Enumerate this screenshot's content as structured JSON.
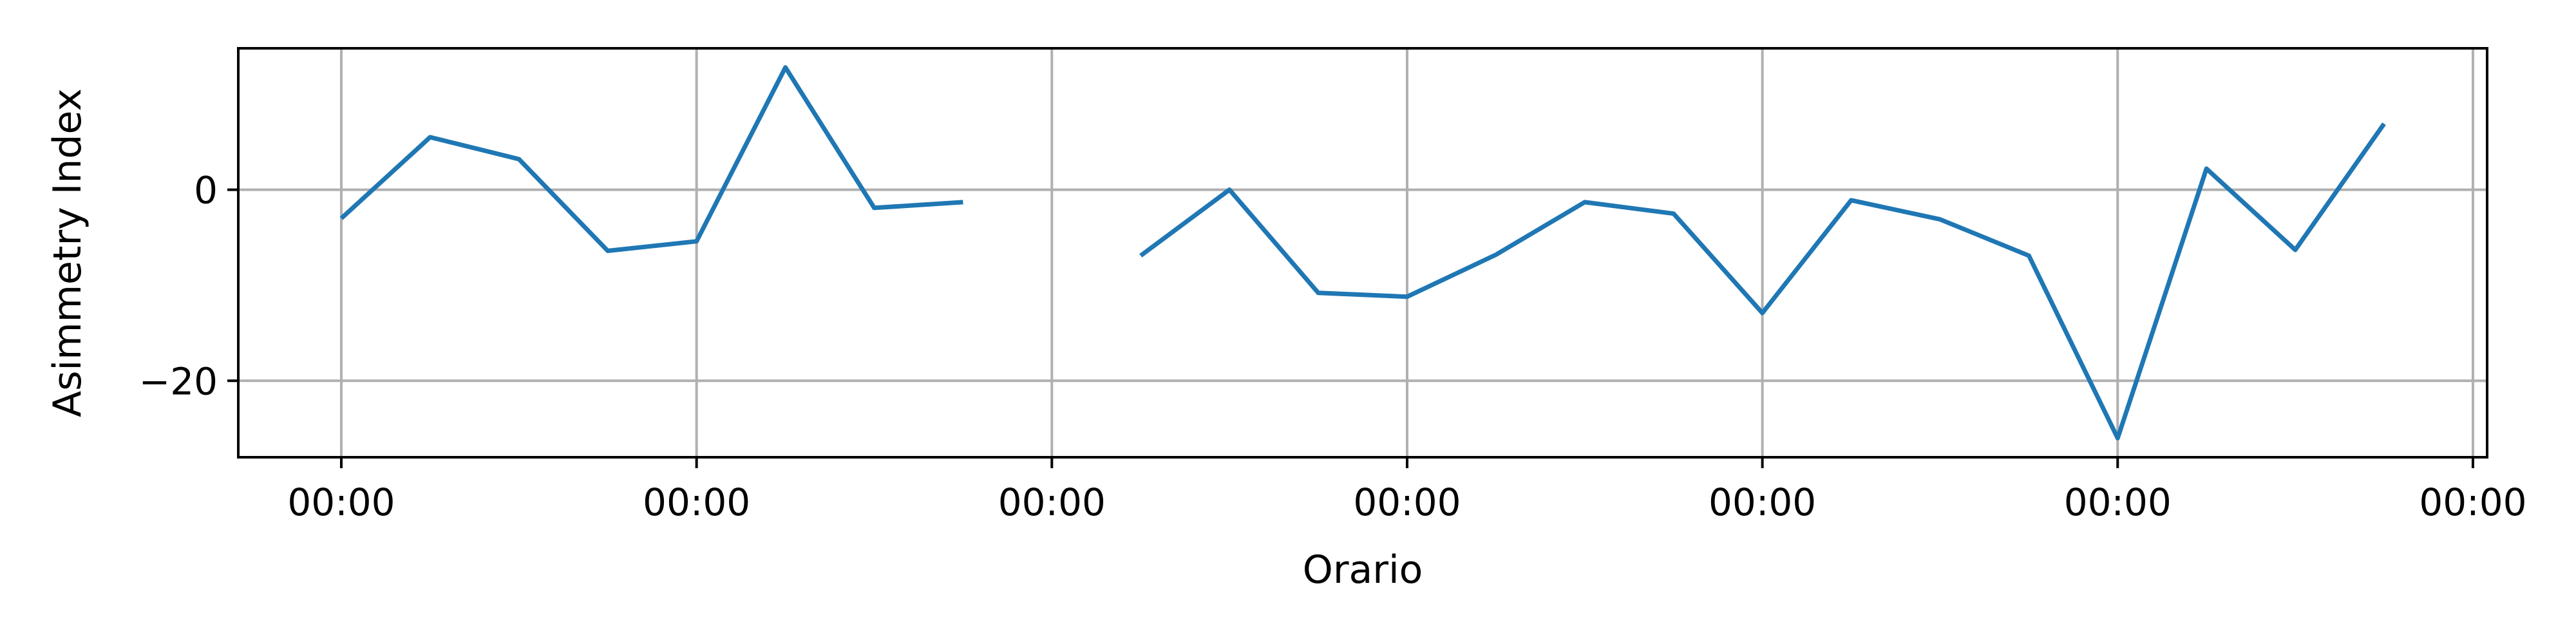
{
  "chart_data": {
    "type": "line",
    "xlabel": "Orario",
    "ylabel": "Asimmetry Index",
    "x_tick_labels": [
      "00:00",
      "00:00",
      "00:00",
      "00:00",
      "00:00",
      "00:00",
      "00:00"
    ],
    "y_ticks": [
      -20,
      0
    ],
    "xlim": [
      -0.29,
      6.04
    ],
    "ylim": [
      -28,
      14.8
    ],
    "grid": true,
    "series": [
      {
        "color": "#1f77b4",
        "x": [
          0,
          0.25,
          0.5,
          0.75,
          1.0,
          1.25,
          1.5,
          1.75,
          2.0,
          2.25,
          2.5,
          2.75,
          3.0,
          3.25,
          3.5,
          3.75,
          4.0,
          4.25,
          4.5,
          4.75,
          5.0,
          5.25,
          5.5,
          5.75
        ],
        "values": [
          -3.0,
          5.5,
          3.2,
          -6.4,
          -5.4,
          12.8,
          -1.9,
          -1.3,
          null,
          -6.9,
          0.0,
          -10.8,
          -11.2,
          -6.8,
          -1.3,
          -2.5,
          -12.9,
          -1.1,
          -3.1,
          -6.9,
          -26.0,
          2.2,
          -6.3,
          6.9
        ]
      }
    ]
  }
}
